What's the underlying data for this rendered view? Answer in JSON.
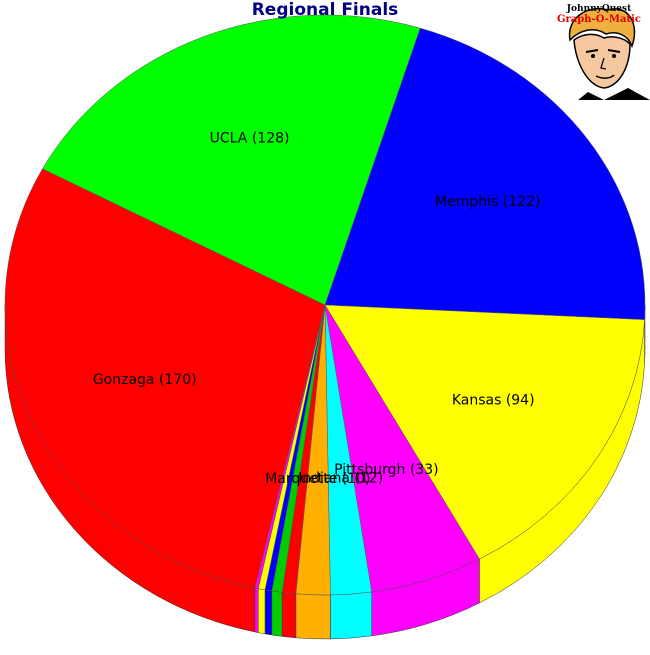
{
  "chart_data": {
    "type": "pie",
    "title": "Regional Finals",
    "style": "3d-pie",
    "labels": [
      "UCLA",
      "Memphis",
      "Kansas",
      "Pittsburgh",
      "Indiana",
      "Marquette",
      "",
      "",
      "",
      "",
      "",
      "Gonzaga"
    ],
    "values": [
      128,
      122,
      94,
      33,
      12,
      10,
      4,
      3,
      2,
      2,
      1,
      170
    ],
    "display_labels": [
      "UCLA (128)",
      "Memphis (122)",
      "Kansas (94)",
      "Pittsburgh (33)",
      "Indiana (12)",
      "Marquette (10)",
      "",
      "",
      "",
      "",
      "",
      "Gonzaga (170)"
    ],
    "colors": [
      "#00ff00",
      "#0000ff",
      "#ffff00",
      "#ff00ff",
      "#00ffff",
      "#ffb000",
      "#ff0000",
      "#00cc00",
      "#0000ff",
      "#ffff00",
      "#ff00ff",
      "#ff0000"
    ]
  },
  "logo": {
    "line1": "JohnnyQuest",
    "line2": "Graph-O-Matic"
  }
}
